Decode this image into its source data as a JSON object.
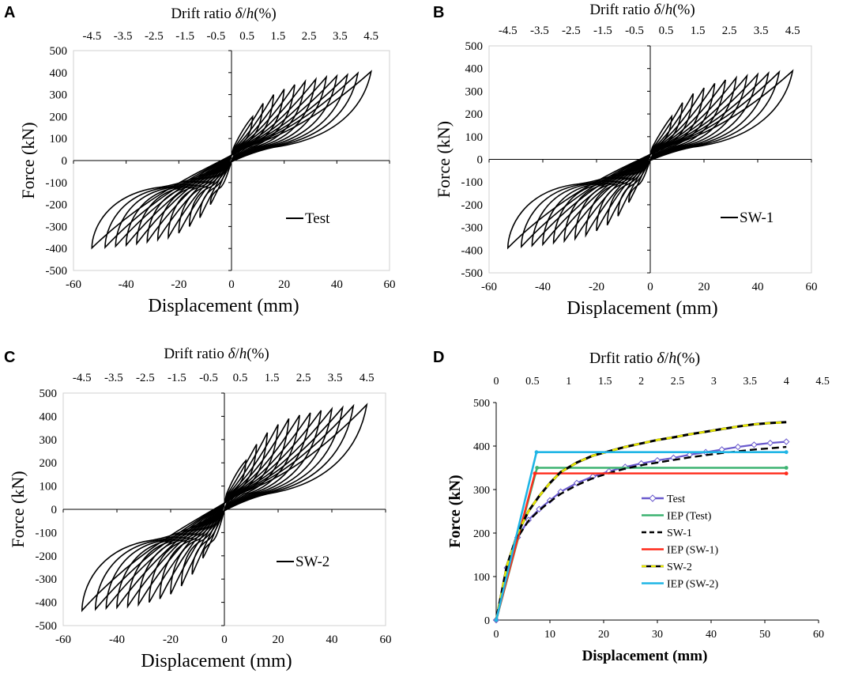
{
  "figure": {
    "panels": [
      {
        "letter": "A",
        "legend": "Test"
      },
      {
        "letter": "B",
        "legend": "SW-1"
      },
      {
        "letter": "C",
        "legend": "SW-2"
      },
      {
        "letter": "D",
        "legend": ""
      }
    ]
  },
  "colors": {
    "axis": "#000000",
    "frame": "#d0d0d0",
    "hysteresis": "#000000",
    "Test": "#6a5acd",
    "IEP (Test)": "#3cb371",
    "SW-1": "#000000",
    "IEP (SW-1)": "#ff2a1a",
    "SW-2": "#e8e800",
    "IEP (SW-2)": "#1fb5e5"
  },
  "chart_data": [
    {
      "id": "A",
      "type": "line",
      "description_series": "Test",
      "title": "",
      "xlabel": "Displacement (mm)",
      "ylabel": "Force (kN)",
      "top_axis_label": "Drift ratio δ/h(%)",
      "top_axis_label_prefix": "Drift ratio ",
      "top_axis_label_delta": "δ",
      "top_axis_label_slash": "/",
      "top_axis_label_h": "h",
      "top_axis_label_suffix": "(%)",
      "xlim": [
        -60,
        60
      ],
      "ylim": [
        -500,
        500
      ],
      "x_ticks": [
        -60,
        -40,
        -20,
        0,
        20,
        40,
        60
      ],
      "y_ticks": [
        -500,
        -400,
        -300,
        -200,
        -100,
        0,
        100,
        200,
        300,
        400,
        500
      ],
      "top_ticks": [
        "-4.5",
        "-3.5",
        "-2.5",
        "-1.5",
        "-0.5",
        "0.5",
        "1.5",
        "2.5",
        "3.5",
        "4.5"
      ],
      "legend": [
        "Test"
      ],
      "cycles": {
        "amplitudes_mm": [
          8,
          12,
          16,
          20,
          24,
          28,
          32,
          36,
          40,
          44,
          48,
          53
        ],
        "peak_force_kN": [
          200,
          260,
          300,
          325,
          345,
          360,
          370,
          380,
          385,
          390,
          398,
          405
        ],
        "neg_peak_force_kN": [
          -200,
          -260,
          -300,
          -330,
          -350,
          -360,
          -370,
          -378,
          -385,
          -390,
          -395,
          -398
        ],
        "pinch_force_kN": 100
      }
    },
    {
      "id": "B",
      "type": "line",
      "description_series": "SW-1",
      "title": "",
      "xlabel": "Displacement (mm)",
      "ylabel": "Force (kN)",
      "top_axis_label": "Drift ratio δ/h(%)",
      "top_axis_label_prefix": "Drift ratio ",
      "top_axis_label_delta": "δ",
      "top_axis_label_slash": "/",
      "top_axis_label_h": "h",
      "top_axis_label_suffix": "(%)",
      "xlim": [
        -60,
        60
      ],
      "ylim": [
        -500,
        500
      ],
      "x_ticks": [
        -60,
        -40,
        -20,
        0,
        20,
        40,
        60
      ],
      "y_ticks": [
        -500,
        -400,
        -300,
        -200,
        -100,
        0,
        100,
        200,
        300,
        400,
        500
      ],
      "top_ticks": [
        "-4.5",
        "-3.5",
        "-2.5",
        "-1.5",
        "-0.5",
        "0.5",
        "1.5",
        "2.5",
        "3.5",
        "4.5"
      ],
      "legend": [
        "SW-1"
      ],
      "cycles": {
        "amplitudes_mm": [
          8,
          12,
          16,
          20,
          24,
          28,
          32,
          36,
          40,
          44,
          48,
          53
        ],
        "peak_force_kN": [
          190,
          250,
          290,
          315,
          335,
          350,
          360,
          368,
          375,
          380,
          385,
          390
        ],
        "neg_peak_force_kN": [
          -190,
          -250,
          -290,
          -315,
          -335,
          -350,
          -360,
          -368,
          -375,
          -380,
          -385,
          -390
        ],
        "pinch_force_kN": 90
      }
    },
    {
      "id": "C",
      "type": "line",
      "description_series": "SW-2",
      "title": "",
      "xlabel": "Displacement (mm)",
      "ylabel": "Force (kN)",
      "top_axis_label": "Drift ratio δ/h(%)",
      "top_axis_label_prefix": "Drift ratio ",
      "top_axis_label_delta": "δ",
      "top_axis_label_slash": "/",
      "top_axis_label_h": "h",
      "top_axis_label_suffix": "(%)",
      "xlim": [
        -60,
        60
      ],
      "ylim": [
        -500,
        500
      ],
      "x_ticks": [
        -60,
        -40,
        -20,
        0,
        20,
        40,
        60
      ],
      "y_ticks": [
        -500,
        -400,
        -300,
        -200,
        -100,
        0,
        100,
        200,
        300,
        400,
        500
      ],
      "top_ticks": [
        "-4.5",
        "-3.5",
        "-2.5",
        "-1.5",
        "-0.5",
        "0.5",
        "1.5",
        "2.5",
        "3.5",
        "4.5"
      ],
      "legend": [
        "SW-2"
      ],
      "cycles": {
        "amplitudes_mm": [
          8,
          12,
          16,
          20,
          24,
          28,
          32,
          36,
          40,
          44,
          48,
          53
        ],
        "peak_force_kN": [
          210,
          280,
          330,
          365,
          390,
          405,
          415,
          425,
          432,
          438,
          445,
          450
        ],
        "neg_peak_force_kN": [
          -210,
          -280,
          -330,
          -365,
          -385,
          -400,
          -410,
          -418,
          -422,
          -425,
          -430,
          -435
        ],
        "pinch_force_kN": 110
      }
    },
    {
      "id": "D",
      "type": "line",
      "title": "",
      "xlabel": "Displacement (mm)",
      "ylabel": "Force (kN)",
      "top_axis_label": "Drfit ratio δ/h(%)",
      "top_axis_label_prefix": "Drfit ratio ",
      "top_axis_label_delta": "δ",
      "top_axis_label_slash": "/",
      "top_axis_label_h": "h",
      "top_axis_label_suffix": "(%)",
      "xlim": [
        0,
        60
      ],
      "ylim": [
        0,
        500
      ],
      "x_ticks": [
        0,
        10,
        20,
        30,
        40,
        50,
        60
      ],
      "y_ticks": [
        0,
        100,
        200,
        300,
        400,
        500
      ],
      "top_ticks": [
        "0",
        "0.5",
        "1",
        "1.5",
        "2",
        "2.5",
        "3",
        "3.5",
        "4",
        "4.5"
      ],
      "legend_position": "center-left",
      "series": [
        {
          "name": "Test",
          "x": [
            0,
            2,
            4,
            6,
            8,
            10,
            12,
            15,
            18,
            21,
            24,
            27,
            30,
            33,
            36,
            39,
            42,
            45,
            48,
            51,
            54
          ],
          "y": [
            0,
            120,
            190,
            230,
            255,
            275,
            295,
            315,
            330,
            342,
            352,
            360,
            367,
            373,
            380,
            386,
            392,
            398,
            403,
            407,
            410
          ]
        },
        {
          "name": "IEP (Test)",
          "x": [
            0,
            7.6,
            54
          ],
          "y": [
            0,
            350,
            350
          ]
        },
        {
          "name": "SW-1",
          "x": [
            0,
            2,
            4,
            6,
            8,
            10,
            12,
            15,
            18,
            21,
            24,
            27,
            30,
            33,
            36,
            39,
            42,
            45,
            48,
            51,
            54
          ],
          "y": [
            0,
            120,
            190,
            228,
            252,
            272,
            290,
            310,
            326,
            338,
            348,
            356,
            362,
            368,
            374,
            379,
            384,
            388,
            392,
            395,
            398
          ]
        },
        {
          "name": "IEP (SW-1)",
          "x": [
            0,
            7.2,
            54
          ],
          "y": [
            0,
            337,
            337
          ]
        },
        {
          "name": "SW-2",
          "x": [
            0,
            2,
            4,
            6,
            8,
            10,
            12,
            15,
            18,
            21,
            24,
            27,
            30,
            33,
            36,
            39,
            42,
            45,
            48,
            51,
            54
          ],
          "y": [
            0,
            125,
            200,
            250,
            285,
            315,
            340,
            362,
            378,
            388,
            398,
            406,
            414,
            420,
            427,
            433,
            439,
            445,
            450,
            453,
            455
          ]
        },
        {
          "name": "IEP (SW-2)",
          "x": [
            0,
            7.5,
            54
          ],
          "y": [
            0,
            386,
            386
          ]
        }
      ]
    }
  ]
}
